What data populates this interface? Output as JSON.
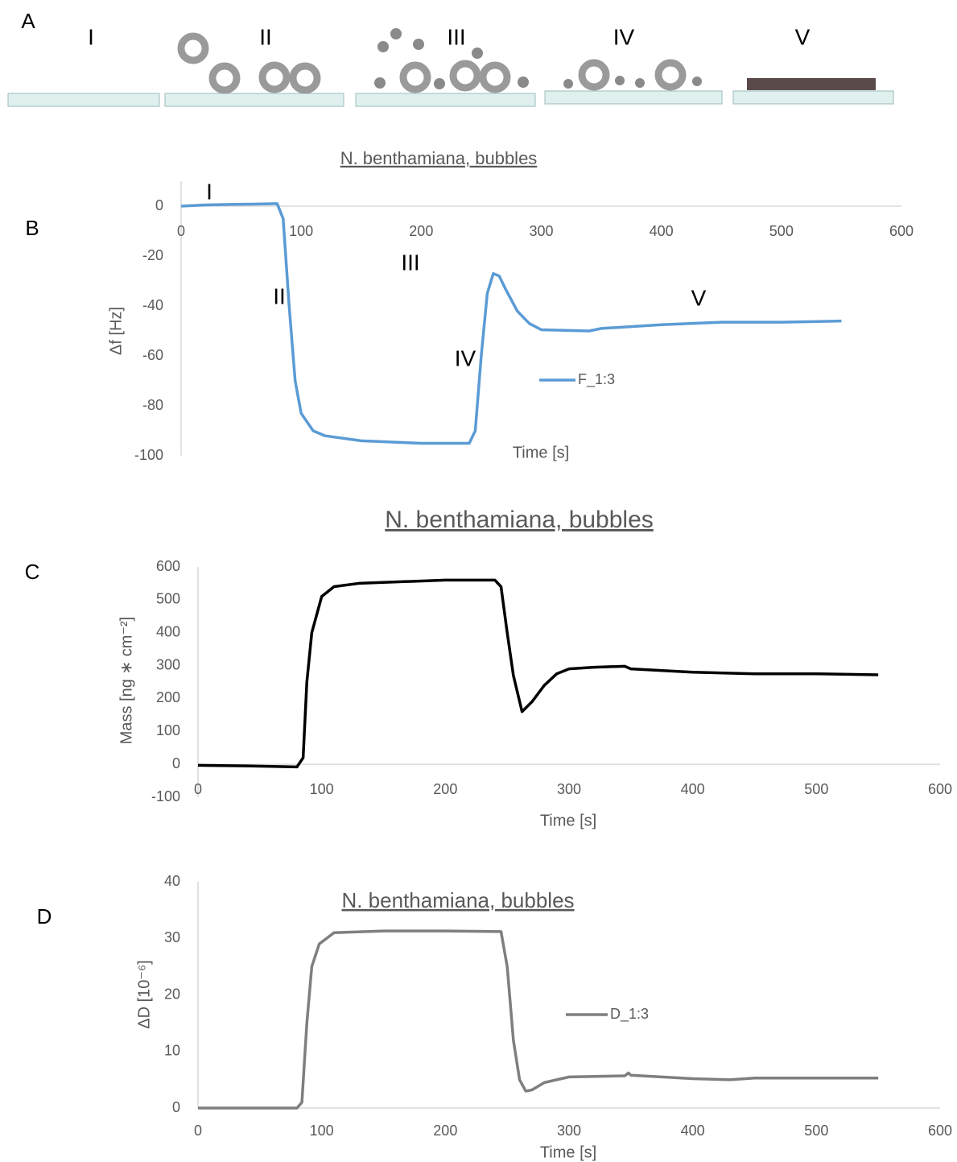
{
  "panel_a": {
    "label": "A",
    "stages": [
      "I",
      "II",
      "III",
      "IV",
      "V"
    ]
  },
  "chart_data": [
    {
      "type": "line",
      "panel_label": "B",
      "title": "N. benthamiana, bubbles",
      "x_label": "Time [s]",
      "y_label": "Δf [Hz]",
      "annotations": [
        "I",
        "II",
        "III",
        "IV",
        "V"
      ],
      "legend": true,
      "x": [
        0,
        20,
        40,
        60,
        80,
        85,
        90,
        95,
        100,
        110,
        120,
        150,
        200,
        240,
        245,
        250,
        255,
        260,
        265,
        270,
        280,
        290,
        300,
        340,
        350,
        400,
        450,
        500,
        550
      ],
      "series": [
        {
          "name": "F_1:3",
          "color": "#5b9bd5",
          "values": [
            0,
            0.5,
            0.7,
            0.8,
            1,
            -5,
            -40,
            -70,
            -83,
            -90,
            -92,
            -94,
            -95,
            -95,
            -90,
            -60,
            -35,
            -27,
            -28,
            -33,
            -42,
            -47,
            -49.5,
            -50,
            -49,
            -47.5,
            -46.5,
            -46.5,
            -46
          ]
        }
      ],
      "xlim": [
        0,
        600
      ],
      "xticks": [
        0,
        100,
        200,
        300,
        400,
        500,
        600
      ],
      "ylim": [
        -100,
        10
      ],
      "yticks": [
        -100,
        -80,
        -60,
        -40,
        -20,
        0
      ]
    },
    {
      "type": "line",
      "panel_label": "C",
      "title": "N. benthamiana, bubbles",
      "x_label": "Time [s]",
      "y_label": "Mass [ng ∗ cm⁻²]",
      "legend": false,
      "x": [
        0,
        40,
        80,
        85,
        88,
        92,
        100,
        110,
        130,
        200,
        240,
        245,
        250,
        255,
        262,
        270,
        280,
        290,
        300,
        320,
        345,
        350,
        400,
        450,
        500,
        550
      ],
      "series": [
        {
          "color": "#000000",
          "values": [
            -3,
            -5,
            -8,
            20,
            250,
            400,
            510,
            540,
            550,
            560,
            560,
            540,
            400,
            270,
            160,
            190,
            240,
            275,
            290,
            295,
            298,
            290,
            280,
            275,
            275,
            272
          ]
        }
      ],
      "xlim": [
        0,
        600
      ],
      "xticks": [
        0,
        100,
        200,
        300,
        400,
        500,
        600
      ],
      "ylim": [
        -100,
        600
      ],
      "yticks": [
        -100,
        0,
        100,
        200,
        300,
        400,
        500,
        600
      ]
    },
    {
      "type": "line",
      "panel_label": "D",
      "title": "N. benthamiana, bubbles",
      "x_label": "Time [s]",
      "y_label": "ΔD [10⁻⁶]",
      "legend": true,
      "x": [
        0,
        40,
        80,
        84,
        88,
        92,
        98,
        110,
        150,
        200,
        245,
        250,
        255,
        260,
        265,
        270,
        280,
        300,
        345,
        348,
        350,
        400,
        430,
        450,
        550
      ],
      "series": [
        {
          "name": "D_1:3",
          "color": "#7f7f7f",
          "values": [
            0,
            0,
            0,
            1,
            15,
            25,
            29,
            31,
            31.3,
            31.3,
            31.2,
            25,
            12,
            5,
            3,
            3.2,
            4.5,
            5.5,
            5.7,
            6.2,
            5.8,
            5.2,
            5,
            5.3,
            5.3
          ]
        }
      ],
      "xlim": [
        0,
        600
      ],
      "xticks": [
        0,
        100,
        200,
        300,
        400,
        500,
        600
      ],
      "ylim": [
        0,
        40
      ],
      "yticks": [
        0,
        10,
        20,
        30,
        40
      ]
    }
  ]
}
